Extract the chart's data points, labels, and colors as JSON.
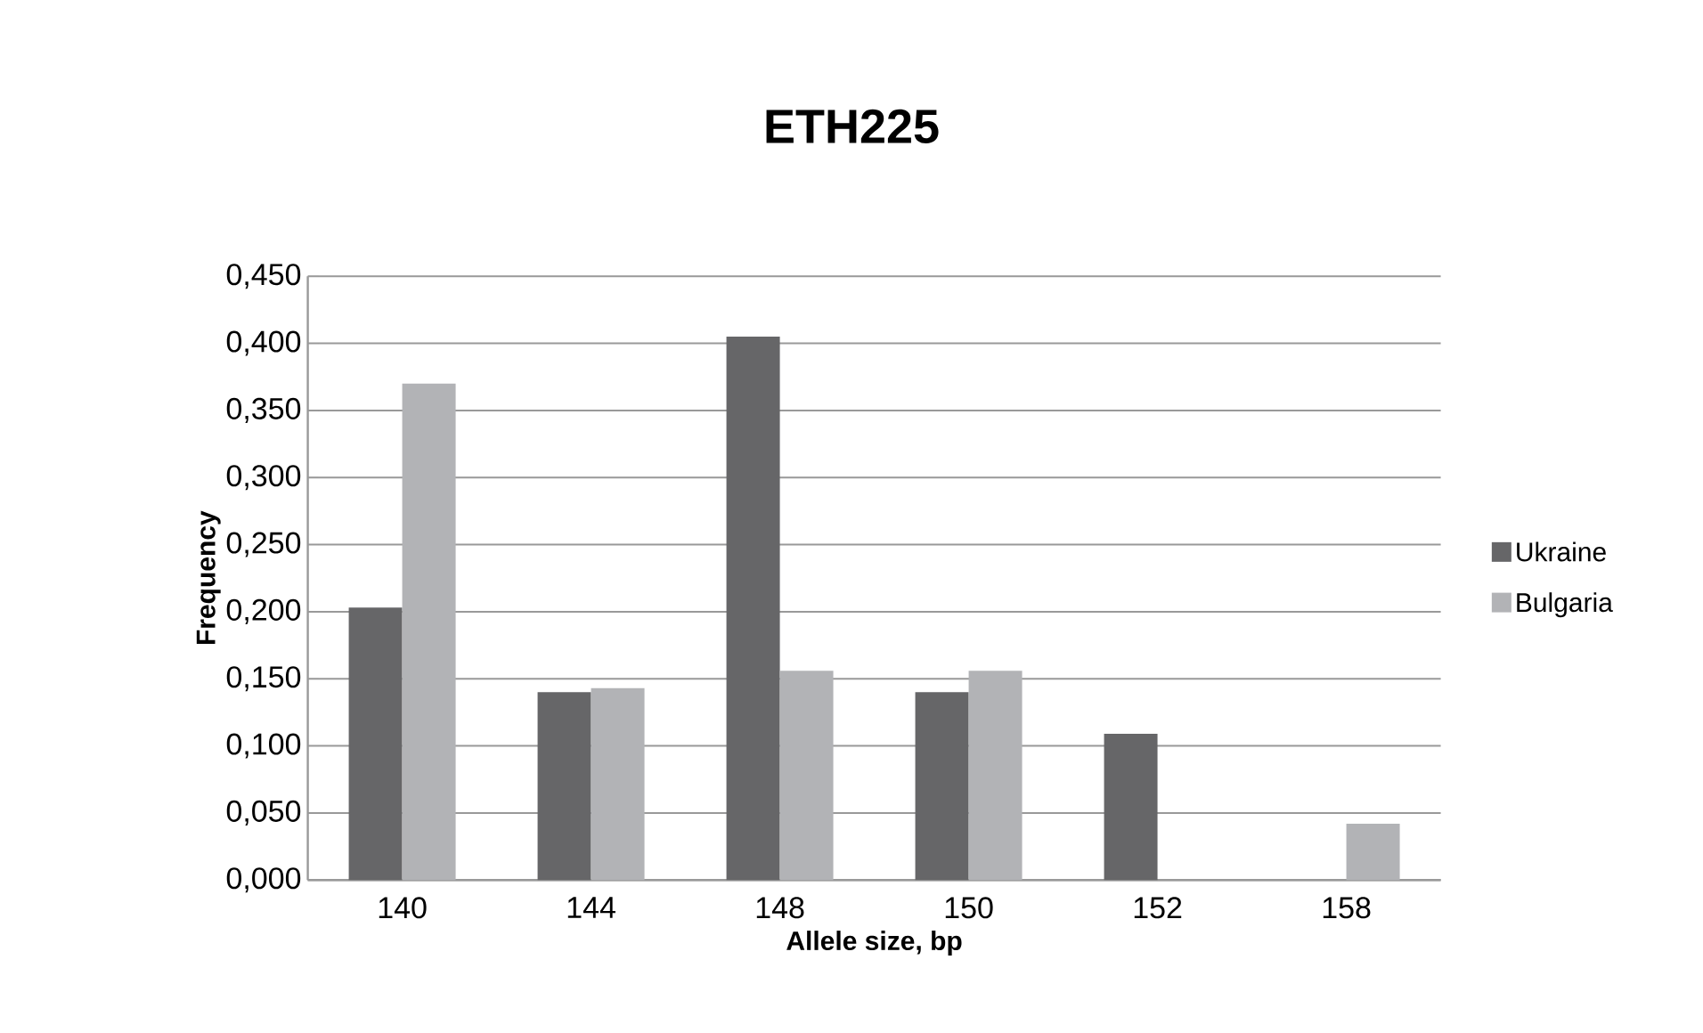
{
  "chart_data": {
    "type": "bar",
    "title": "ETH225",
    "xlabel": "Allele size, bp",
    "ylabel": "Frequency",
    "categories": [
      "140",
      "144",
      "148",
      "150",
      "152",
      "158"
    ],
    "series": [
      {
        "name": "Ukraine",
        "color": "#666668",
        "values": [
          0.203,
          0.14,
          0.405,
          0.14,
          0.109,
          null
        ]
      },
      {
        "name": "Bulgaria",
        "color": "#b2b3b6",
        "values": [
          0.37,
          0.143,
          0.156,
          0.156,
          null,
          0.042
        ]
      }
    ],
    "ylim": [
      0,
      0.45
    ],
    "yticks": [
      {
        "value": 0,
        "label": "0,000"
      },
      {
        "value": 0.05,
        "label": "0,050"
      },
      {
        "value": 0.1,
        "label": "0,100"
      },
      {
        "value": 0.15,
        "label": "0,150"
      },
      {
        "value": 0.2,
        "label": "0,200"
      },
      {
        "value": 0.25,
        "label": "0,250"
      },
      {
        "value": 0.3,
        "label": "0,300"
      },
      {
        "value": 0.35,
        "label": "0,350"
      },
      {
        "value": 0.4,
        "label": "0,400"
      },
      {
        "value": 0.45,
        "label": "0,450"
      }
    ],
    "grid": "y",
    "legend": "right"
  }
}
